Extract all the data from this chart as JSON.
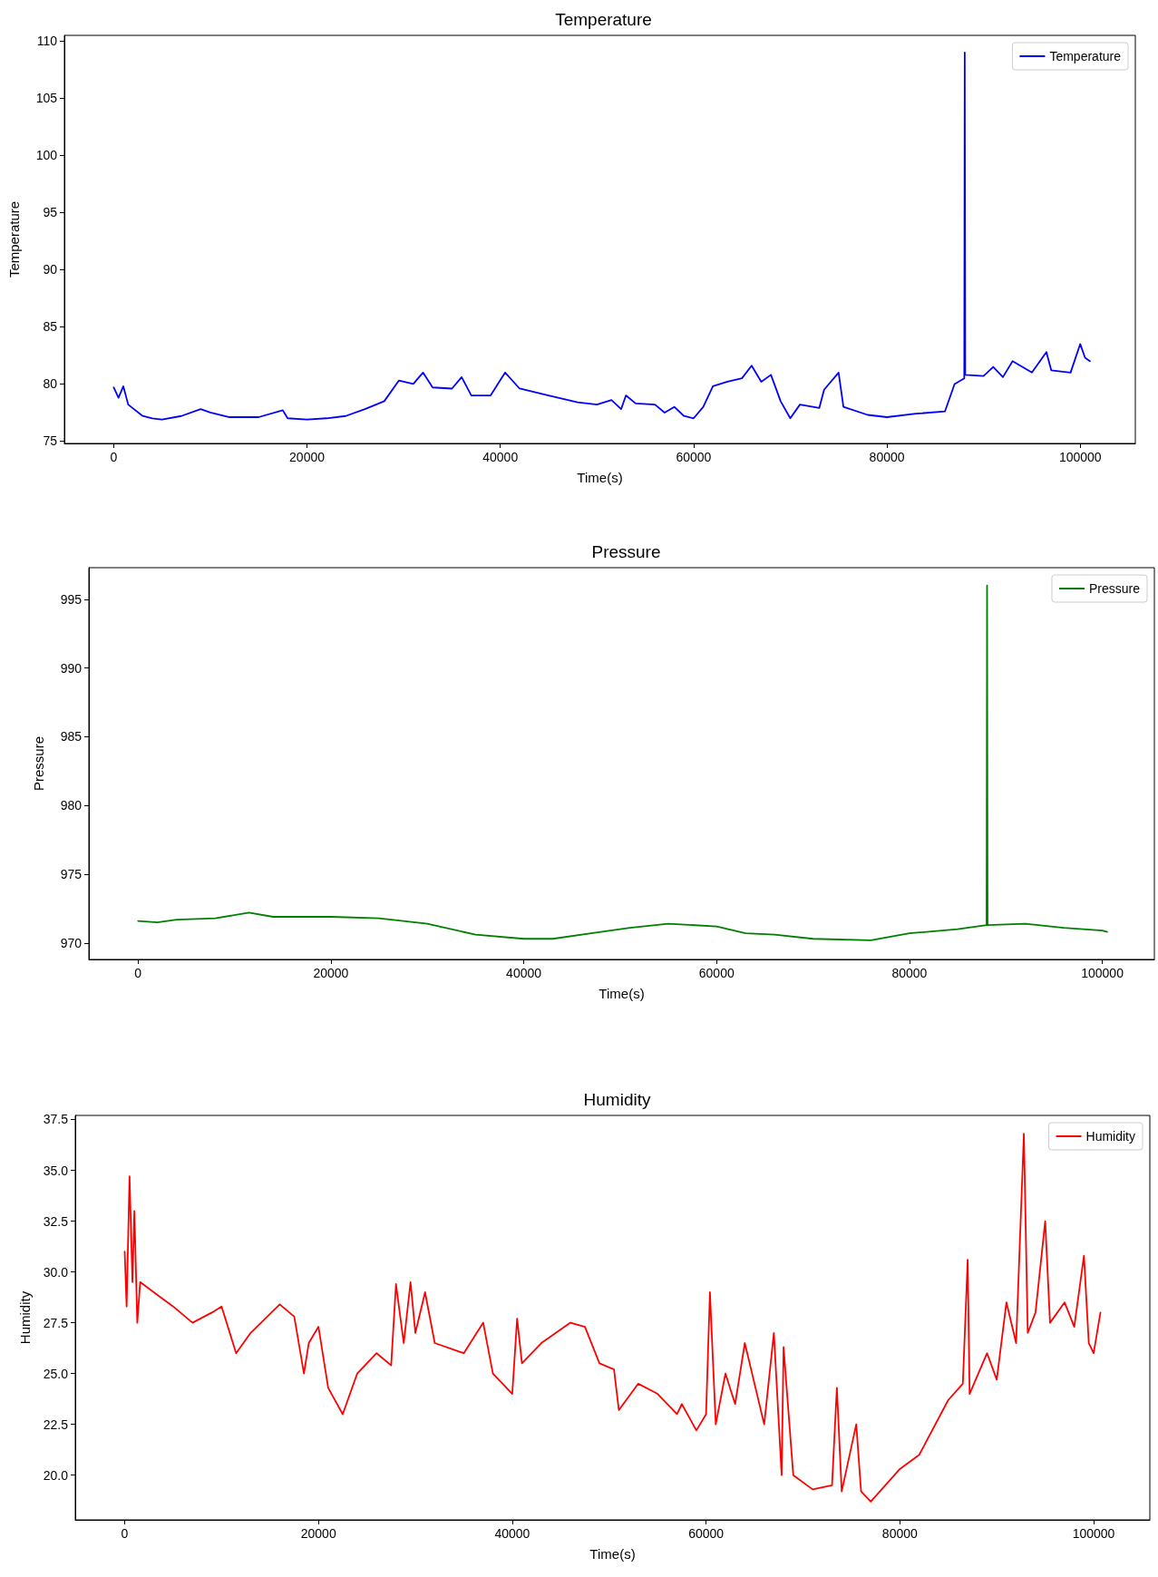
{
  "chart_data": [
    {
      "type": "line",
      "title": "Temperature",
      "xlabel": "Time(s)",
      "ylabel": "Temperature",
      "legend": "top right",
      "grid": false,
      "marker": "none",
      "line_style": "solid",
      "xlim": [
        -5100,
        105700
      ],
      "xticks": [
        0,
        20000,
        40000,
        60000,
        80000,
        100000
      ],
      "ylim": [
        74.8,
        110.5
      ],
      "yticks": [
        75,
        80,
        85,
        90,
        95,
        100,
        105,
        110
      ],
      "series": [
        {
          "name": "Temperature",
          "color": "#0000ff",
          "x": [
            0,
            500,
            1000,
            1500,
            3000,
            4000,
            5000,
            7000,
            9000,
            10000,
            12000,
            15000,
            17500,
            18000,
            20000,
            22000,
            24000,
            26000,
            28000,
            29500,
            31000,
            32000,
            33000,
            35000,
            36000,
            37000,
            39000,
            40500,
            42000,
            45000,
            48000,
            50000,
            51500,
            52500,
            53000,
            54000,
            56000,
            57000,
            58000,
            59000,
            60000,
            61000,
            62000,
            63500,
            65000,
            66000,
            67000,
            68000,
            69000,
            70000,
            71000,
            73000,
            73500,
            75000,
            75500,
            78000,
            80000,
            83000,
            86000,
            87000,
            88000,
            88050,
            88100,
            90000,
            91000,
            92000,
            93000,
            95000,
            96500,
            97000,
            99000,
            100000,
            100500,
            101000
          ],
          "values": [
            79.7,
            78.8,
            79.8,
            78.2,
            77.2,
            77,
            76.9,
            77.2,
            77.8,
            77.5,
            77.1,
            77.1,
            77.7,
            77,
            76.9,
            77,
            77.2,
            77.8,
            78.5,
            80.3,
            80,
            81,
            79.7,
            79.6,
            80.6,
            79,
            79,
            81,
            79.6,
            79,
            78.4,
            78.2,
            78.6,
            77.8,
            79,
            78.3,
            78.2,
            77.5,
            78,
            77.2,
            77,
            78,
            79.8,
            80.2,
            80.5,
            81.6,
            80.2,
            80.8,
            78.5,
            77,
            78.2,
            77.9,
            79.5,
            81,
            78,
            77.3,
            77.1,
            77.4,
            77.6,
            80,
            80.5,
            109,
            80.8,
            80.7,
            81.5,
            80.6,
            82,
            81,
            82.8,
            81.2,
            81,
            83.5,
            82.3,
            82
          ]
        }
      ]
    },
    {
      "type": "line",
      "title": "Pressure",
      "xlabel": "Time(s)",
      "ylabel": "Pressure",
      "legend": "top right",
      "grid": false,
      "marker": "none",
      "line_style": "solid",
      "xlim": [
        -5100,
        105400
      ],
      "xticks": [
        0,
        20000,
        40000,
        60000,
        80000,
        100000
      ],
      "ylim": [
        968.8,
        997.3
      ],
      "yticks": [
        970,
        975,
        980,
        985,
        990,
        995
      ],
      "series": [
        {
          "name": "Pressure",
          "color": "#008000",
          "x": [
            0,
            2000,
            4000,
            8000,
            11500,
            14000,
            20000,
            25000,
            30000,
            35000,
            40000,
            43000,
            47000,
            51000,
            55000,
            60000,
            63000,
            66000,
            70000,
            76000,
            80000,
            85000,
            88000,
            88050,
            88100,
            92000,
            96000,
            100000,
            100500
          ],
          "values": [
            971.6,
            971.5,
            971.7,
            971.8,
            972.2,
            971.9,
            971.9,
            971.8,
            971.4,
            970.6,
            970.3,
            970.3,
            970.7,
            971.1,
            971.4,
            971.2,
            970.7,
            970.6,
            970.3,
            970.2,
            970.7,
            971,
            971.3,
            996,
            971.3,
            971.4,
            971.1,
            970.9,
            970.8
          ]
        }
      ]
    },
    {
      "type": "line",
      "title": "Humidity",
      "xlabel": "Time(s)",
      "ylabel": "Humidity",
      "legend": "top right",
      "grid": false,
      "marker": "none",
      "line_style": "solid",
      "xlim": [
        -5100,
        105800
      ],
      "xticks": [
        0,
        20000,
        40000,
        60000,
        80000,
        100000
      ],
      "ylim": [
        17.8,
        37.7
      ],
      "yticks": [
        {
          "value": 20,
          "label": "20.0"
        },
        {
          "value": 22.5,
          "label": "22.5"
        },
        {
          "value": 25,
          "label": "25.0"
        },
        {
          "value": 27.5,
          "label": "27.5"
        },
        {
          "value": 30,
          "label": "30.0"
        },
        {
          "value": 32.5,
          "label": "32.5"
        },
        {
          "value": 35,
          "label": "35.0"
        },
        {
          "value": 37.5,
          "label": "37.5"
        }
      ],
      "series": [
        {
          "name": "Humidity",
          "color": "#ff0000",
          "x": [
            0,
            200,
            500,
            800,
            1000,
            1300,
            1600,
            3000,
            5000,
            7000,
            9000,
            10000,
            11500,
            13000,
            16000,
            17500,
            18500,
            19000,
            20000,
            21000,
            22500,
            24000,
            26000,
            27500,
            28000,
            28800,
            29500,
            30000,
            31000,
            32000,
            35000,
            37000,
            38000,
            40000,
            40500,
            41000,
            43000,
            46000,
            47500,
            49000,
            50500,
            51000,
            53000,
            55000,
            57000,
            57500,
            59000,
            60000,
            60400,
            61000,
            62000,
            63000,
            64000,
            66000,
            67000,
            67800,
            68000,
            69000,
            71000,
            73000,
            73500,
            74000,
            75500,
            76000,
            77000,
            80000,
            82000,
            85000,
            86500,
            87000,
            87200,
            89000,
            90000,
            91000,
            92000,
            92800,
            93200,
            94000,
            95000,
            95500,
            97000,
            98000,
            99000,
            99500,
            100000,
            100700
          ],
          "values": [
            31,
            28.3,
            34.7,
            29.5,
            33,
            27.5,
            29.5,
            29,
            28.3,
            27.5,
            28,
            28.3,
            26,
            27,
            28.4,
            27.8,
            25,
            26.5,
            27.3,
            24.3,
            23,
            25,
            26,
            25.4,
            29.4,
            26.5,
            29.5,
            27,
            29,
            26.5,
            26,
            27.5,
            25,
            24,
            27.7,
            25.5,
            26.5,
            27.5,
            27.3,
            25.5,
            25.2,
            23.2,
            24.5,
            24,
            23,
            23.5,
            22.2,
            23,
            29,
            22.5,
            25,
            23.5,
            26.5,
            22.5,
            27,
            20,
            26.3,
            20,
            19.3,
            19.5,
            24.3,
            19.2,
            22.5,
            19.2,
            18.7,
            20.3,
            21,
            23.7,
            24.5,
            30.6,
            24,
            26,
            24.7,
            28.5,
            26.5,
            36.8,
            27,
            28,
            32.5,
            27.5,
            28.5,
            27.3,
            30.8,
            26.5,
            26,
            28
          ]
        }
      ]
    }
  ]
}
